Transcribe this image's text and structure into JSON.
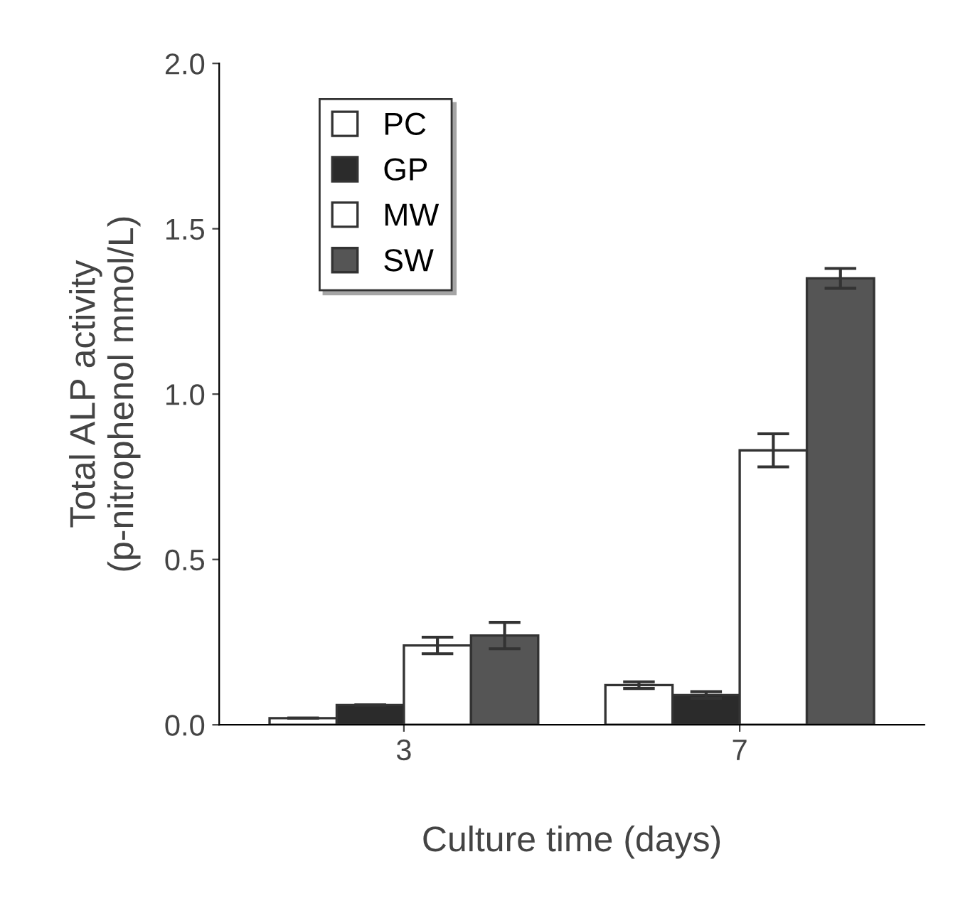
{
  "chart_data": {
    "type": "bar",
    "xlabel": "Culture time (days)",
    "ylabel": "Total ALP activity\n(p-nitrophenol mmol/L)",
    "categories": [
      "3",
      "7"
    ],
    "series": [
      {
        "name": "PC",
        "color": "#ffffff",
        "values": [
          0.02,
          0.12
        ],
        "errors": [
          null,
          0.01
        ]
      },
      {
        "name": "GP",
        "color": "#2b2b2b",
        "values": [
          0.06,
          0.09
        ],
        "errors": [
          null,
          0.01
        ]
      },
      {
        "name": "MW",
        "color": "#ffffff",
        "values": [
          0.24,
          0.83
        ],
        "errors": [
          0.025,
          0.05
        ]
      },
      {
        "name": "SW",
        "color": "#555555",
        "values": [
          0.27,
          1.35
        ],
        "errors": [
          0.04,
          0.03
        ]
      }
    ],
    "ylim": [
      0,
      2.0
    ],
    "yticks": [
      {
        "value": 0,
        "label": "0.0"
      },
      0.5,
      {
        "value": 1,
        "label": "1.0"
      },
      1.5,
      {
        "value": 2,
        "label": "2.0"
      }
    ],
    "legend": "top left",
    "grid": false
  }
}
